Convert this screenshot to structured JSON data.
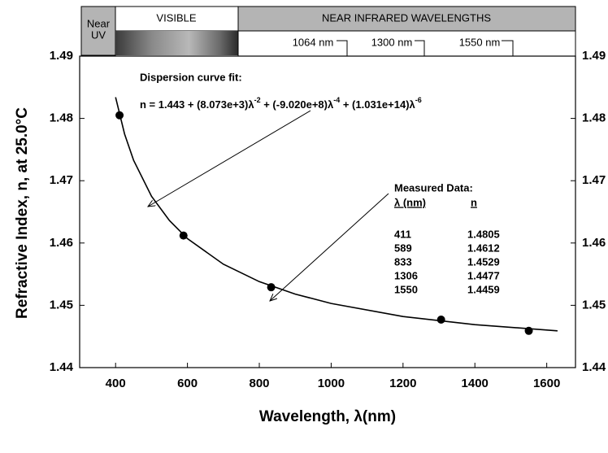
{
  "chart_data": {
    "type": "scatter",
    "x_label": "Wavelength, λ(nm)",
    "y_label": "Refractive Index, n, at 25.0°C",
    "xlim": [
      300,
      1680
    ],
    "xticks": [
      400,
      600,
      800,
      1000,
      1200,
      1400,
      1600
    ],
    "ylim": [
      1.44,
      1.49
    ],
    "yticks": [
      1.44,
      1.45,
      1.46,
      1.47,
      1.48,
      1.49
    ],
    "header": {
      "near_uv": [
        "Near",
        "UV"
      ],
      "visible": "VISIBLE",
      "near_infrared": "NEAR INFRARED WAVELENGTHS",
      "markers": [
        "1064 nm",
        "1300 nm",
        "1550 nm"
      ]
    },
    "fit_title": "Dispersion curve fit:",
    "equation": [
      "n = 1.443 + (8.073e+3)λ",
      "-2",
      " + (-9.020e+8)λ",
      "-4",
      " + (1.031e+14)λ",
      "-6"
    ],
    "table_title": "Measured Data:",
    "table_headers": [
      "λ (nm)",
      "n"
    ],
    "series": [
      {
        "style": "points",
        "color": "#000000",
        "x": [
          411,
          589,
          833,
          1306,
          1550
        ],
        "values": [
          1.4805,
          1.4612,
          1.4529,
          1.4477,
          1.4459
        ]
      },
      {
        "style": "line",
        "color": "#000000",
        "x": [
          400,
          425,
          450,
          500,
          550,
          600,
          700,
          800,
          900,
          1000,
          1200,
          1400,
          1630
        ],
        "values": [
          1.4834,
          1.4775,
          1.4733,
          1.4675,
          1.4636,
          1.4607,
          1.4566,
          1.4538,
          1.4518,
          1.4503,
          1.4482,
          1.4469,
          1.4459
        ]
      }
    ]
  }
}
